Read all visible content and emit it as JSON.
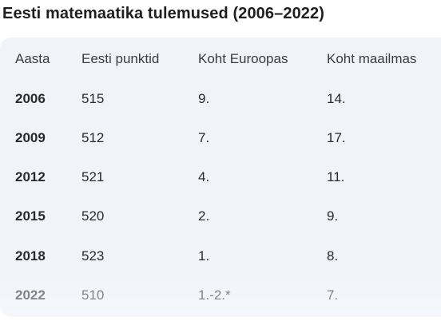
{
  "title": "Eesti matemaatika tulemused (2006–2022)",
  "table": {
    "headers": [
      "Aasta",
      "Eesti punktid",
      "Koht Euroopas",
      "Koht maailmas"
    ],
    "rows": [
      [
        "2006",
        "515",
        "9.",
        "14."
      ],
      [
        "2009",
        "512",
        "7.",
        "17."
      ],
      [
        "2012",
        "521",
        "4.",
        "11."
      ],
      [
        "2015",
        "520",
        "2.",
        "9."
      ],
      [
        "2018",
        "523",
        "1.",
        "8."
      ],
      [
        "2022",
        "510",
        "1.-2.*",
        "7."
      ]
    ]
  },
  "colors": {
    "table_background": "#f0f4f9",
    "text": "#1f1f1f"
  }
}
